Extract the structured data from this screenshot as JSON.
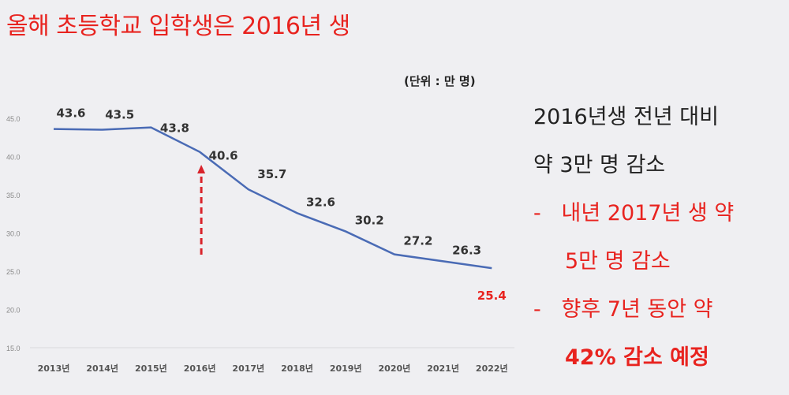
{
  "title": "올해 초등학교 입학생은 2016년 생",
  "unit_label": "(단위 : 만 명)",
  "side_text": {
    "line1": "2016년생 전년 대비",
    "line2": "약 3만 명 감소",
    "bullet1_dash": "-",
    "bullet1_a": "내년 2017년 생 약",
    "bullet1_b": "5만 명 감소",
    "bullet2_dash": "-",
    "bullet2_a": "향후 7년 동안 약",
    "bullet2_b": "42% 감소 예정"
  },
  "chart_data": {
    "type": "line",
    "categories": [
      "2013년",
      "2014년",
      "2015년",
      "2016년",
      "2017년",
      "2018년",
      "2019년",
      "2020년",
      "2021년",
      "2022년"
    ],
    "values": [
      43.6,
      43.5,
      43.8,
      40.6,
      35.7,
      32.6,
      30.2,
      27.2,
      26.3,
      25.4
    ],
    "labels": [
      "43.6",
      "43.5",
      "43.8",
      "40.6",
      "35.7",
      "32.6",
      "30.2",
      "27.2",
      "26.3",
      "25.4"
    ],
    "ylim": [
      15,
      45
    ],
    "yticks": [
      "15.0",
      "20.0",
      "25.0",
      "30.0",
      "35.0",
      "40.0",
      "45.0"
    ],
    "line_color": "#4a6bb5",
    "highlight_label_color": "#e8231f",
    "arrow_color": "#d9232b",
    "annotation": "dashed red arrow pointing up at 2016년"
  }
}
